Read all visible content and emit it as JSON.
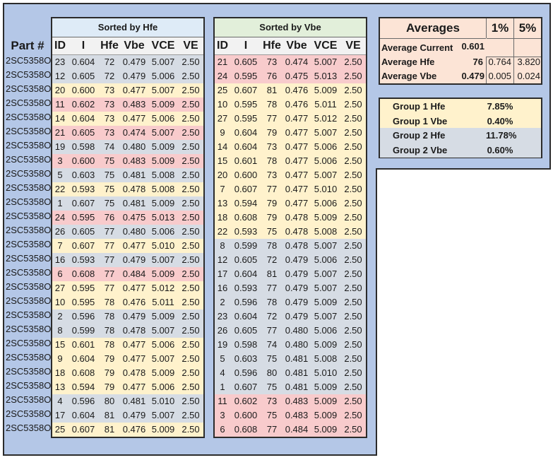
{
  "part_header": "Part #",
  "part_number": "2SC5358O",
  "table_hfe": {
    "title": "Sorted by Hfe",
    "title_color": "#deebf7",
    "columns": [
      "ID",
      "I",
      "Hfe",
      "Vbe",
      "VCE",
      "VE"
    ],
    "rows": [
      {
        "color": "blue",
        "cells": [
          "23",
          "0.604",
          "72",
          "0.479",
          "5.007",
          "2.50"
        ]
      },
      {
        "color": "blue",
        "cells": [
          "12",
          "0.605",
          "72",
          "0.479",
          "5.006",
          "2.50"
        ]
      },
      {
        "color": "yellow",
        "cells": [
          "20",
          "0.600",
          "73",
          "0.477",
          "5.007",
          "2.50"
        ]
      },
      {
        "color": "pink",
        "cells": [
          "11",
          "0.602",
          "73",
          "0.483",
          "5.009",
          "2.50"
        ]
      },
      {
        "color": "yellow",
        "cells": [
          "14",
          "0.604",
          "73",
          "0.477",
          "5.006",
          "2.50"
        ]
      },
      {
        "color": "pink",
        "cells": [
          "21",
          "0.605",
          "73",
          "0.474",
          "5.007",
          "2.50"
        ]
      },
      {
        "color": "blue",
        "cells": [
          "19",
          "0.598",
          "74",
          "0.480",
          "5.009",
          "2.50"
        ]
      },
      {
        "color": "pink",
        "cells": [
          "3",
          "0.600",
          "75",
          "0.483",
          "5.009",
          "2.50"
        ]
      },
      {
        "color": "blue",
        "cells": [
          "5",
          "0.603",
          "75",
          "0.481",
          "5.008",
          "2.50"
        ]
      },
      {
        "color": "yellow",
        "cells": [
          "22",
          "0.593",
          "75",
          "0.478",
          "5.008",
          "2.50"
        ]
      },
      {
        "color": "blue",
        "cells": [
          "1",
          "0.607",
          "75",
          "0.481",
          "5.009",
          "2.50"
        ]
      },
      {
        "color": "pink",
        "cells": [
          "24",
          "0.595",
          "76",
          "0.475",
          "5.013",
          "2.50"
        ]
      },
      {
        "color": "blue",
        "cells": [
          "26",
          "0.605",
          "77",
          "0.480",
          "5.006",
          "2.50"
        ]
      },
      {
        "color": "yellow",
        "cells": [
          "7",
          "0.607",
          "77",
          "0.477",
          "5.010",
          "2.50"
        ]
      },
      {
        "color": "blue",
        "cells": [
          "16",
          "0.593",
          "77",
          "0.479",
          "5.007",
          "2.50"
        ]
      },
      {
        "color": "pink",
        "cells": [
          "6",
          "0.608",
          "77",
          "0.484",
          "5.009",
          "2.50"
        ]
      },
      {
        "color": "yellow",
        "cells": [
          "27",
          "0.595",
          "77",
          "0.477",
          "5.012",
          "2.50"
        ]
      },
      {
        "color": "yellow",
        "cells": [
          "10",
          "0.595",
          "78",
          "0.476",
          "5.011",
          "2.50"
        ]
      },
      {
        "color": "blue",
        "cells": [
          "2",
          "0.596",
          "78",
          "0.479",
          "5.009",
          "2.50"
        ]
      },
      {
        "color": "blue",
        "cells": [
          "8",
          "0.599",
          "78",
          "0.478",
          "5.007",
          "2.50"
        ]
      },
      {
        "color": "yellow",
        "cells": [
          "15",
          "0.601",
          "78",
          "0.477",
          "5.006",
          "2.50"
        ]
      },
      {
        "color": "yellow",
        "cells": [
          "9",
          "0.604",
          "79",
          "0.477",
          "5.007",
          "2.50"
        ]
      },
      {
        "color": "yellow",
        "cells": [
          "18",
          "0.608",
          "79",
          "0.478",
          "5.009",
          "2.50"
        ]
      },
      {
        "color": "yellow",
        "cells": [
          "13",
          "0.594",
          "79",
          "0.477",
          "5.006",
          "2.50"
        ]
      },
      {
        "color": "blue",
        "cells": [
          "4",
          "0.596",
          "80",
          "0.481",
          "5.010",
          "2.50"
        ]
      },
      {
        "color": "blue",
        "cells": [
          "17",
          "0.604",
          "81",
          "0.479",
          "5.007",
          "2.50"
        ]
      },
      {
        "color": "yellow",
        "cells": [
          "25",
          "0.607",
          "81",
          "0.476",
          "5.009",
          "2.50"
        ]
      }
    ]
  },
  "table_vbe": {
    "title": "Sorted by Vbe",
    "title_color": "#e2efda",
    "columns": [
      "ID",
      "I",
      "Hfe",
      "Vbe",
      "VCE",
      "VE"
    ],
    "rows": [
      {
        "color": "pink",
        "cells": [
          "21",
          "0.605",
          "73",
          "0.474",
          "5.007",
          "2.50"
        ]
      },
      {
        "color": "pink",
        "cells": [
          "24",
          "0.595",
          "76",
          "0.475",
          "5.013",
          "2.50"
        ]
      },
      {
        "color": "yellow",
        "cells": [
          "25",
          "0.607",
          "81",
          "0.476",
          "5.009",
          "2.50"
        ]
      },
      {
        "color": "yellow",
        "cells": [
          "10",
          "0.595",
          "78",
          "0.476",
          "5.011",
          "2.50"
        ]
      },
      {
        "color": "yellow",
        "cells": [
          "27",
          "0.595",
          "77",
          "0.477",
          "5.012",
          "2.50"
        ]
      },
      {
        "color": "yellow",
        "cells": [
          "9",
          "0.604",
          "79",
          "0.477",
          "5.007",
          "2.50"
        ]
      },
      {
        "color": "yellow",
        "cells": [
          "14",
          "0.604",
          "73",
          "0.477",
          "5.006",
          "2.50"
        ]
      },
      {
        "color": "yellow",
        "cells": [
          "15",
          "0.601",
          "78",
          "0.477",
          "5.006",
          "2.50"
        ]
      },
      {
        "color": "yellow",
        "cells": [
          "20",
          "0.600",
          "73",
          "0.477",
          "5.007",
          "2.50"
        ]
      },
      {
        "color": "yellow",
        "cells": [
          "7",
          "0.607",
          "77",
          "0.477",
          "5.010",
          "2.50"
        ]
      },
      {
        "color": "yellow",
        "cells": [
          "13",
          "0.594",
          "79",
          "0.477",
          "5.006",
          "2.50"
        ]
      },
      {
        "color": "yellow",
        "cells": [
          "18",
          "0.608",
          "79",
          "0.478",
          "5.009",
          "2.50"
        ]
      },
      {
        "color": "yellow",
        "cells": [
          "22",
          "0.593",
          "75",
          "0.478",
          "5.008",
          "2.50"
        ]
      },
      {
        "color": "blue",
        "cells": [
          "8",
          "0.599",
          "78",
          "0.478",
          "5.007",
          "2.50"
        ]
      },
      {
        "color": "blue",
        "cells": [
          "12",
          "0.605",
          "72",
          "0.479",
          "5.006",
          "2.50"
        ]
      },
      {
        "color": "blue",
        "cells": [
          "17",
          "0.604",
          "81",
          "0.479",
          "5.007",
          "2.50"
        ]
      },
      {
        "color": "blue",
        "cells": [
          "16",
          "0.593",
          "77",
          "0.479",
          "5.007",
          "2.50"
        ]
      },
      {
        "color": "blue",
        "cells": [
          "2",
          "0.596",
          "78",
          "0.479",
          "5.009",
          "2.50"
        ]
      },
      {
        "color": "blue",
        "cells": [
          "23",
          "0.604",
          "72",
          "0.479",
          "5.007",
          "2.50"
        ]
      },
      {
        "color": "blue",
        "cells": [
          "26",
          "0.605",
          "77",
          "0.480",
          "5.006",
          "2.50"
        ]
      },
      {
        "color": "blue",
        "cells": [
          "19",
          "0.598",
          "74",
          "0.480",
          "5.009",
          "2.50"
        ]
      },
      {
        "color": "blue",
        "cells": [
          "5",
          "0.603",
          "75",
          "0.481",
          "5.008",
          "2.50"
        ]
      },
      {
        "color": "blue",
        "cells": [
          "4",
          "0.596",
          "80",
          "0.481",
          "5.010",
          "2.50"
        ]
      },
      {
        "color": "blue",
        "cells": [
          "1",
          "0.607",
          "75",
          "0.481",
          "5.009",
          "2.50"
        ]
      },
      {
        "color": "pink",
        "cells": [
          "11",
          "0.602",
          "73",
          "0.483",
          "5.009",
          "2.50"
        ]
      },
      {
        "color": "pink",
        "cells": [
          "3",
          "0.600",
          "75",
          "0.483",
          "5.009",
          "2.50"
        ]
      },
      {
        "color": "pink",
        "cells": [
          "6",
          "0.608",
          "77",
          "0.484",
          "5.009",
          "2.50"
        ]
      }
    ]
  },
  "averages": {
    "title": "Averages",
    "col_1pct": "1%",
    "col_5pct": "5%",
    "current_label": "Average Current",
    "current_value": "0.601",
    "hfe_label": "Average Hfe",
    "hfe_value": "76",
    "hfe_1pct": "0.764",
    "hfe_5pct": "3.820",
    "vbe_label": "Average Vbe",
    "vbe_value": "0.479",
    "vbe_1pct": "0.005",
    "vbe_5pct": "0.024"
  },
  "groups": [
    {
      "label": "Group 1 Hfe",
      "value": "7.85%",
      "color": "#fff2cc"
    },
    {
      "label": "Group 1 Vbe",
      "value": "0.40%",
      "color": "#fff2cc"
    },
    {
      "label": "Group 2 Hfe",
      "value": "11.78%",
      "color": "#d6dce4"
    },
    {
      "label": "Group 2 Vbe",
      "value": "0.60%",
      "color": "#d6dce4"
    }
  ],
  "colors": {
    "frame_bg": "#b4c7e7",
    "yellow": "#fff2cc",
    "blue": "#d6dce4",
    "pink": "#f8cbcc",
    "averages_bg": "#fce4d6"
  }
}
